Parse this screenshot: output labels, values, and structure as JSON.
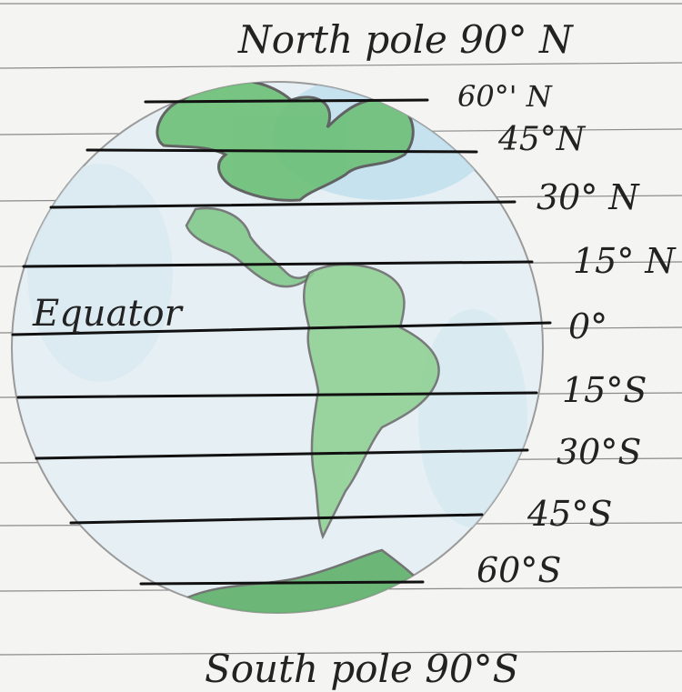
{
  "title": "North pole 90° N",
  "bottom_title": "South pole 90°S",
  "equator_label": "Equator",
  "latitudes": [
    {
      "label": "60°' N"
    },
    {
      "label": "45°N"
    },
    {
      "label": "30° N"
    },
    {
      "label": "15° N"
    },
    {
      "label": "0°"
    },
    {
      "label": "15°S"
    },
    {
      "label": "30°S"
    },
    {
      "label": "45°S"
    },
    {
      "label": "60°S"
    }
  ],
  "colors": {
    "paper": "#f4f4f2",
    "ruled_line": "#7a7a7a",
    "ocean": "#cfe4ef",
    "land": "#5fae67",
    "ink": "#1a1a1a"
  }
}
